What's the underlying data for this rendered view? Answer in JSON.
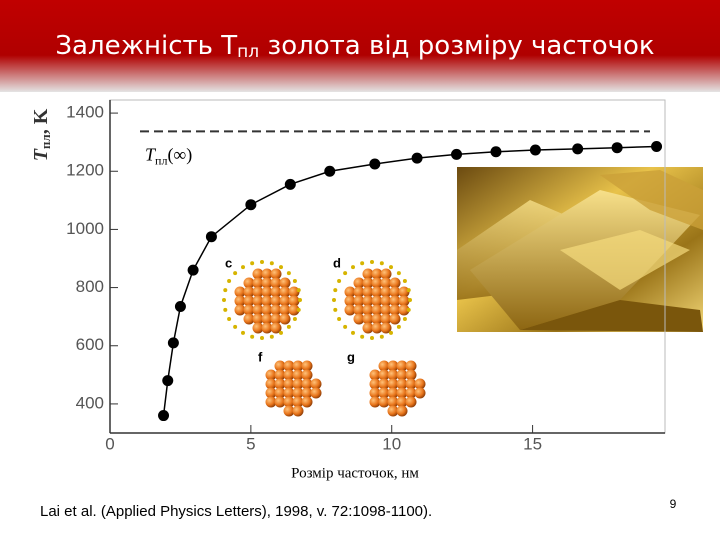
{
  "slide_title": {
    "before": "Залежність Т",
    "sub": "пл",
    "after": " золота від розміру часточок"
  },
  "chart_data": {
    "type": "line",
    "y_label": {
      "symbol": "T",
      "sub": "пл",
      "suffix": ", K"
    },
    "x_label": "Розмір часточок, нм",
    "x": [
      1.9,
      2.05,
      2.25,
      2.5,
      2.95,
      3.6,
      5.0,
      6.4,
      7.8,
      9.4,
      10.9,
      12.3,
      13.7,
      15.1,
      16.6,
      18.0,
      19.4
    ],
    "series": [
      {
        "color": "#000000",
        "values": [
          360,
          480,
          610,
          735,
          860,
          975,
          1085,
          1155,
          1200,
          1225,
          1245,
          1258,
          1267,
          1273,
          1277,
          1281,
          1285
        ]
      }
    ],
    "xlim": [
      0,
      19.7
    ],
    "ylim": [
      300,
      1445
    ],
    "xticks": [
      0,
      5,
      10,
      15
    ],
    "yticks": [
      400,
      600,
      800,
      1000,
      1200,
      1400
    ],
    "reference_line": {
      "value": 1337,
      "symbol": "T",
      "sub": "пл",
      "suffix": "(∞)"
    },
    "panel_labels": [
      "c",
      "d",
      "f",
      "g"
    ]
  },
  "citation": "Lai et al. (Applied Physics Letters), 1998, v. 72:1098-1100).",
  "page_number": "9"
}
